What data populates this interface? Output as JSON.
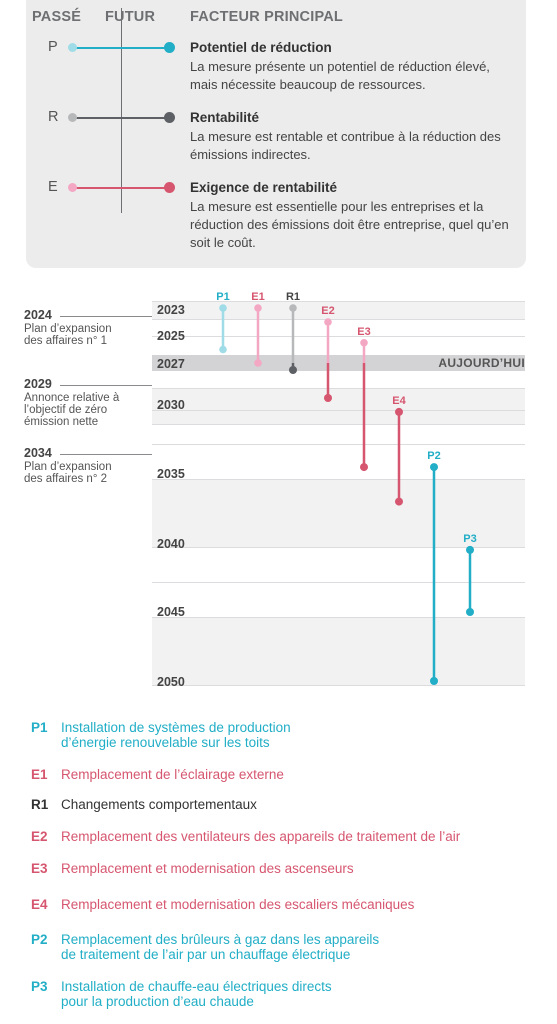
{
  "legend": {
    "headers": {
      "past": "PASSÉ",
      "future": "FUTUR",
      "factor": "FACTEUR PRINCIPAL"
    },
    "entries": [
      {
        "letter": "P",
        "title": "Potentiel de réduction",
        "description": "La mesure présente un potentiel de réduction élevé, mais nécessite beaucoup de ressources.",
        "color_past": "#9fdce7",
        "color_future": "#21aec6"
      },
      {
        "letter": "R",
        "title": "Rentabilité",
        "description": "La mesure est rentable et contribue à la réduction des émissions indirectes.",
        "color_past": "#b7b8ba",
        "color_future": "#5d6065"
      },
      {
        "letter": "E",
        "title": "Exigence de rentabilité",
        "description": "La mesure est essentielle pour les entreprises et la réduction des émissions doit être entreprise, quel qu’en soit le coût.",
        "color_past": "#f4a7c3",
        "color_future": "#d6566f"
      }
    ]
  },
  "timeline": {
    "years": [
      "2023",
      "2025",
      "2027",
      "2030",
      "2035",
      "2040",
      "2045",
      "2050"
    ],
    "today_label": "AUJOURD’HUI",
    "today_year": 2027,
    "events": [
      {
        "year": "2024",
        "text": "Plan d’expansion\ndes affaires n° 1"
      },
      {
        "year": "2029",
        "text": "Annonce relative à\nl’objectif de zéro\némission nette"
      },
      {
        "year": "2034",
        "text": "Plan d’expansion\ndes affaires n° 2"
      }
    ],
    "measures": [
      {
        "code": "P1",
        "group": "P",
        "start": 2023,
        "end": 2026
      },
      {
        "code": "E1",
        "group": "E",
        "start": 2023,
        "end": 2027
      },
      {
        "code": "R1",
        "group": "R",
        "start": 2023,
        "end": 2027.5
      },
      {
        "code": "E2",
        "group": "E",
        "start": 2024,
        "end": 2029.5
      },
      {
        "code": "E3",
        "group": "E",
        "start": 2025.5,
        "end": 2034.5
      },
      {
        "code": "E4",
        "group": "E",
        "start": 2030.5,
        "end": 2037
      },
      {
        "code": "P2",
        "group": "P",
        "start": 2034.5,
        "end": 2050
      },
      {
        "code": "P3",
        "group": "P",
        "start": 2040.5,
        "end": 2045
      }
    ]
  },
  "list": [
    {
      "code": "P1",
      "text": "Installation de systèmes de production\nd’énergie renouvelable sur les toits",
      "color": "#21aec6"
    },
    {
      "code": "E1",
      "text": "Remplacement de l’éclairage externe",
      "color": "#d6566f"
    },
    {
      "code": "R1",
      "text": "Changements comportementaux",
      "color": "#333333"
    },
    {
      "code": "E2",
      "text": "Remplacement des ventilateurs des appareils de traitement de l’air",
      "color": "#d6566f"
    },
    {
      "code": "E3",
      "text": "Remplacement et modernisation des ascenseurs",
      "color": "#d6566f"
    },
    {
      "code": "E4",
      "text": "Remplacement et modernisation des escaliers mécaniques",
      "color": "#d6566f"
    },
    {
      "code": "P2",
      "text": "Remplacement des brûleurs à gaz dans les appareils\nde traitement de l’air par un chauffage électrique",
      "color": "#21aec6"
    },
    {
      "code": "P3",
      "text": "Installation de chauffe-eau électriques directs\npour la production d’eau chaude",
      "color": "#21aec6"
    }
  ]
}
